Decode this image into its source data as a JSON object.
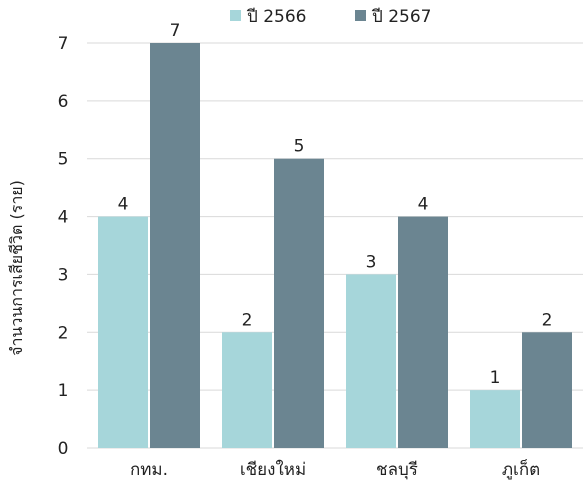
{
  "chart_data": {
    "type": "bar",
    "categories": [
      "กทม.",
      "เชียงใหม่",
      "ชลบุรี",
      "ภูเก็ต"
    ],
    "series": [
      {
        "name": "ปี 2566",
        "values": [
          4,
          2,
          3,
          1
        ],
        "color": "#A6D6DA"
      },
      {
        "name": "ปี 2567",
        "values": [
          7,
          5,
          4,
          2
        ],
        "color": "#6B8591"
      }
    ],
    "ylabel": "จำนวนการเสียชีวิต (ราย)",
    "ylim": [
      0,
      7
    ],
    "yticks": [
      0,
      1,
      2,
      3,
      4,
      5,
      6,
      7
    ],
    "grid": true,
    "legend_position": "top"
  }
}
